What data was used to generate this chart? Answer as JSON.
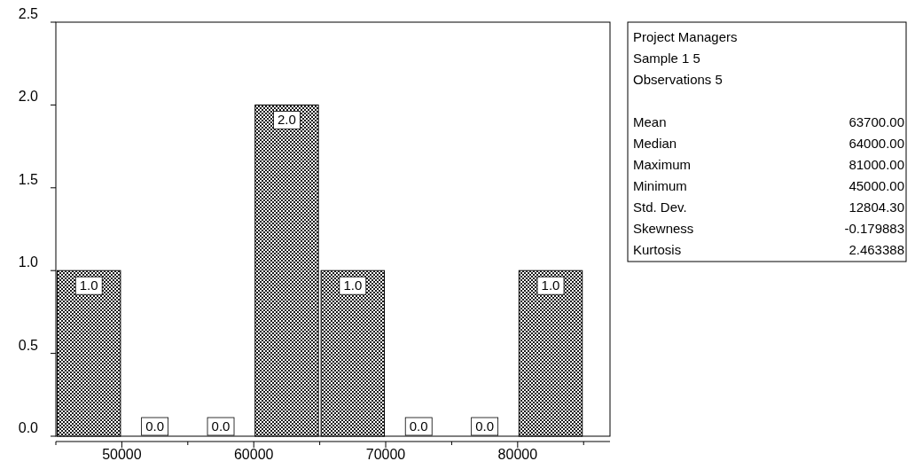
{
  "chart_data": {
    "type": "histogram",
    "bins": [
      45000,
      50000,
      55000,
      60000,
      65000,
      70000,
      75000,
      80000,
      85000
    ],
    "values": [
      1,
      0,
      0,
      2,
      1,
      0,
      0,
      1
    ],
    "color": "#000000",
    "value_labels": [
      "1.0",
      "0.0",
      "0.0",
      "2.0",
      "1.0",
      "0.0",
      "0.0",
      "1.0"
    ],
    "xlim": [
      45000,
      87000
    ],
    "xticks": [
      {
        "value": 45000,
        "label": null
      },
      50000,
      {
        "value": 55000,
        "label": null
      },
      60000,
      {
        "value": 65000,
        "label": null
      },
      70000,
      {
        "value": 75000,
        "label": null
      },
      80000,
      {
        "value": 85000,
        "label": null
      }
    ],
    "ylim": [
      0,
      2.5
    ],
    "yticks": [
      {
        "value": 0,
        "label": "0.0"
      },
      {
        "value": 0.5,
        "label": "0.5"
      },
      {
        "value": 1,
        "label": "1.0"
      },
      {
        "value": 1.5,
        "label": "1.5"
      },
      {
        "value": 2,
        "label": "2.0"
      },
      {
        "value": 2.5,
        "label": "2.5"
      }
    ],
    "grid": false,
    "annotations": [
      "Project Managers",
      "Sample 1 5",
      "Observations 5",
      "Mean",
      "63700.00",
      "Median",
      "64000.00",
      "Maximum",
      "81000.00",
      "Minimum",
      "45000.00",
      "Std. Dev.",
      "12804.30",
      "Skewness",
      "-0.179883",
      "Kurtosis",
      "2.463388"
    ]
  }
}
